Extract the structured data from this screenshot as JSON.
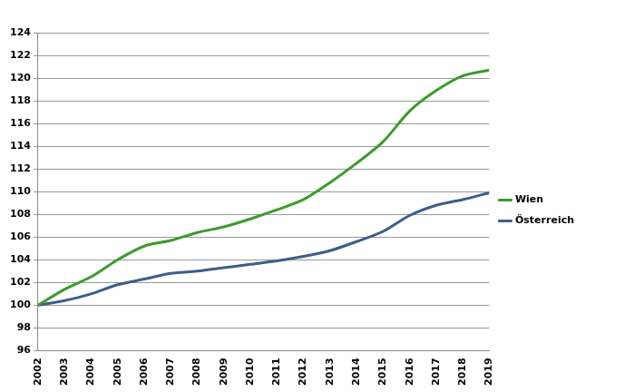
{
  "chart_data": {
    "type": "line",
    "categories": [
      "2002",
      "2003",
      "2004",
      "2005",
      "2006",
      "2007",
      "2008",
      "2009",
      "2010",
      "2011",
      "2012",
      "2013",
      "2014",
      "2015",
      "2016",
      "2017",
      "2018",
      "2019"
    ],
    "series": [
      {
        "name": "Wien",
        "color": "#3c9c2c",
        "values": [
          100,
          101.4,
          102.5,
          104.0,
          105.2,
          105.7,
          106.4,
          106.9,
          107.6,
          108.4,
          109.3,
          110.8,
          112.5,
          114.4,
          117.1,
          118.9,
          120.2,
          120.7
        ]
      },
      {
        "name": "Österreich",
        "color": "#3b5e8c",
        "values": [
          100,
          100.4,
          101.0,
          101.8,
          102.3,
          102.8,
          103.0,
          103.3,
          103.6,
          103.9,
          104.3,
          104.8,
          105.6,
          106.5,
          107.9,
          108.8,
          109.3,
          109.9
        ]
      }
    ],
    "ylim": [
      96,
      124
    ],
    "yticks": [
      96,
      98,
      100,
      102,
      104,
      106,
      108,
      110,
      112,
      114,
      116,
      118,
      120,
      122,
      124
    ],
    "grid": true,
    "legend": "right"
  }
}
